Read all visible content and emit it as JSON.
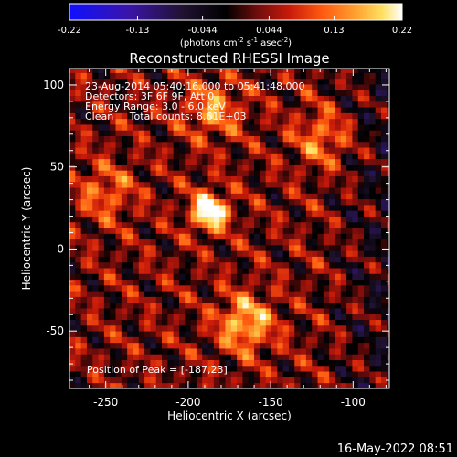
{
  "footer": {
    "date_time": "16-May-2022 08:51"
  },
  "chart_data": {
    "type": "heatmap",
    "title": "Reconstructed RHESSI Image",
    "xlabel": "Heliocentric X (arcsec)",
    "ylabel": "Heliocentric Y (arcsec)",
    "xlim": [
      -272,
      -78
    ],
    "ylim": [
      -85,
      110
    ],
    "x_ticks": [
      -250,
      -200,
      -150,
      -100
    ],
    "y_ticks": [
      -50,
      0,
      50,
      100
    ],
    "colorbar": {
      "min": -0.22,
      "max": 0.22,
      "ticks": [
        "-0.22",
        "-0.13",
        "-0.044",
        "0.044",
        "0.13",
        "0.22"
      ],
      "units": {
        "base": "(photons cm",
        "exp1": "-2",
        "mid1": " s",
        "exp2": "-1",
        "mid2": " asec",
        "exp3": "-2",
        "end": ")"
      },
      "colors": [
        "#1010ff",
        "#3a14a8",
        "#201230",
        "#000000",
        "#6a0c0c",
        "#c81a0a",
        "#ff5a10",
        "#ffa030",
        "#ffe060",
        "#ffffff"
      ]
    },
    "annotations": [
      "23-Aug-2014 05:40:16.000 to 05:41:48.000",
      "Detectors: 3F 6F 9F, Att 0",
      "Energy Range: 3.0 - 6.0 keV",
      "Clean     Total counts: 8.61E+03"
    ],
    "peak_label": "Position of Peak = [-187,23]",
    "peak": {
      "x": -187,
      "y": 23,
      "value": 0.22
    },
    "secondary_sources": [
      {
        "x": -165,
        "y": -45,
        "value": 0.15
      },
      {
        "x": -185,
        "y": 85,
        "value": 0.11
      },
      {
        "x": -118,
        "y": 68,
        "value": 0.1
      },
      {
        "x": -250,
        "y": 35,
        "value": 0.09
      }
    ]
  }
}
